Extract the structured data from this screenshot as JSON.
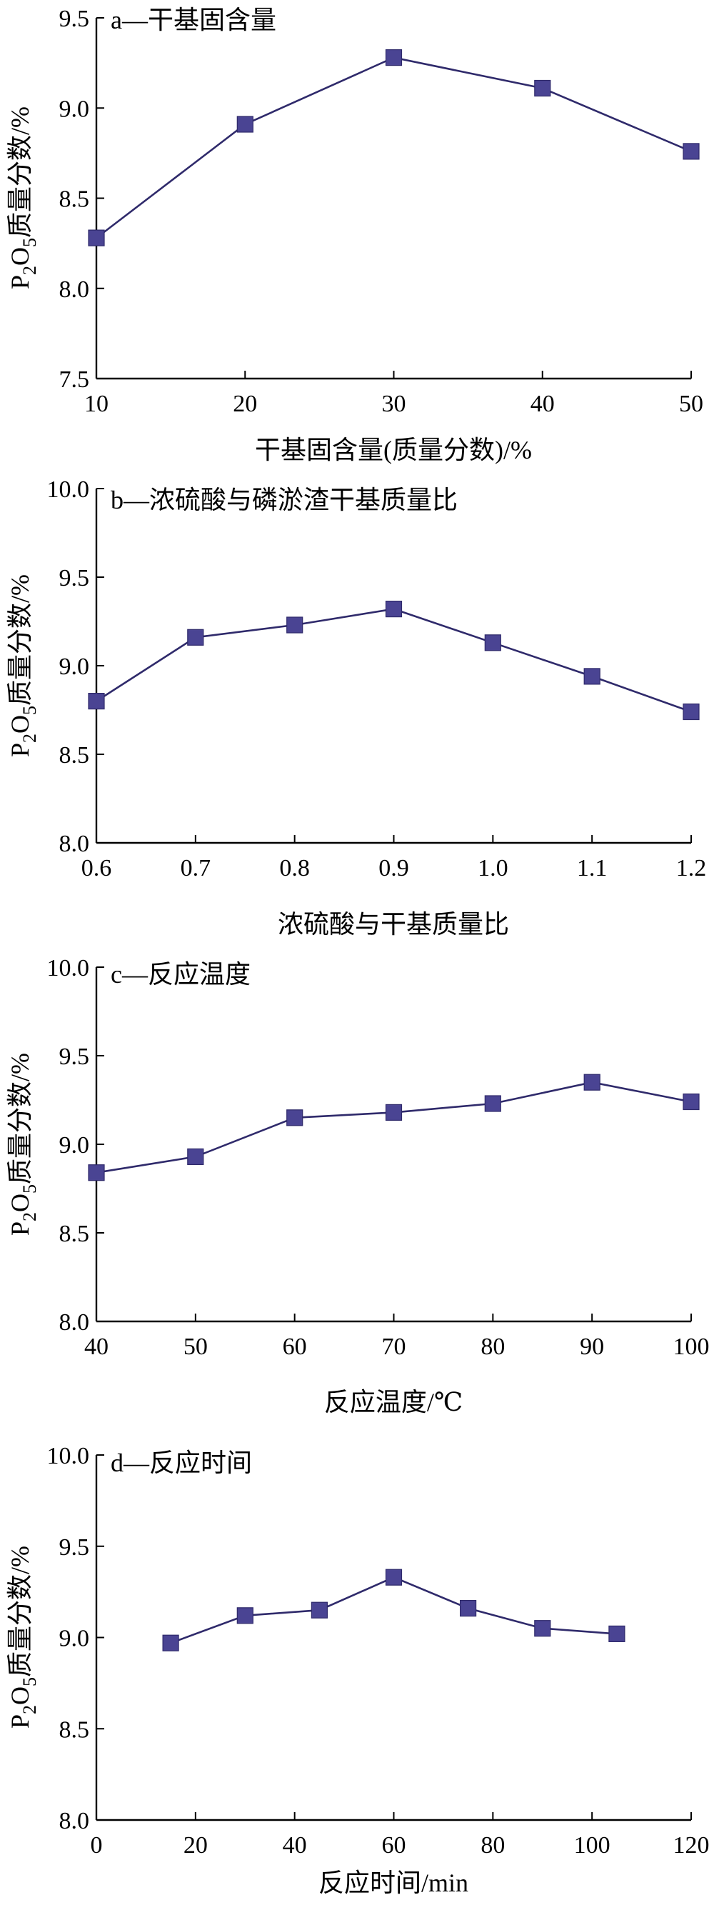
{
  "colors": {
    "line": "#2f2a6b",
    "marker": "#4a4493",
    "axis": "#000000"
  },
  "chart_data": [
    {
      "type": "line",
      "title": "a—干基固含量",
      "xlabel": "干基固含量(质量分数)/%",
      "ylabel": "P2O5质量分数/%",
      "xlim": [
        10,
        50
      ],
      "ylim": [
        7.5,
        9.5
      ],
      "xticks": [
        10,
        20,
        30,
        40,
        50
      ],
      "yticks": [
        7.5,
        8.0,
        8.5,
        9.0,
        9.5
      ],
      "xtick_labels": [
        "10",
        "20",
        "30",
        "40",
        "50"
      ],
      "ytick_labels": [
        "7.5",
        "8.0",
        "8.5",
        "9.0",
        "9.5"
      ],
      "x": [
        10,
        20,
        30,
        40,
        50
      ],
      "y": [
        8.28,
        8.91,
        9.28,
        9.11,
        8.76
      ],
      "marker": "square",
      "grid": false
    },
    {
      "type": "line",
      "title": "b—浓硫酸与磷淤渣干基质量比",
      "xlabel": "浓硫酸与干基质量比",
      "ylabel": "P2O5质量分数/%",
      "xlim": [
        0.6,
        1.2
      ],
      "ylim": [
        8.0,
        10.0
      ],
      "xticks": [
        0.6,
        0.7,
        0.8,
        0.9,
        1.0,
        1.1,
        1.2
      ],
      "yticks": [
        8.0,
        8.5,
        9.0,
        9.5,
        10.0
      ],
      "xtick_labels": [
        "0.6",
        "0.7",
        "0.8",
        "0.9",
        "1.0",
        "1.1",
        "1.2"
      ],
      "ytick_labels": [
        "8.0",
        "8.5",
        "9.0",
        "9.5",
        "10.0"
      ],
      "x": [
        0.6,
        0.7,
        0.8,
        0.9,
        1.0,
        1.1,
        1.2
      ],
      "y": [
        8.8,
        9.16,
        9.23,
        9.32,
        9.13,
        8.94,
        8.74
      ],
      "marker": "square",
      "grid": false
    },
    {
      "type": "line",
      "title": "c—反应温度",
      "xlabel": "反应温度/℃",
      "ylabel": "P2O5质量分数/%",
      "xlim": [
        40,
        100
      ],
      "ylim": [
        8.0,
        10.0
      ],
      "xticks": [
        40,
        50,
        60,
        70,
        80,
        90,
        100
      ],
      "yticks": [
        8.0,
        8.5,
        9.0,
        9.5,
        10.0
      ],
      "xtick_labels": [
        "40",
        "50",
        "60",
        "70",
        "80",
        "90",
        "100"
      ],
      "ytick_labels": [
        "8.0",
        "8.5",
        "9.0",
        "9.5",
        "10.0"
      ],
      "x": [
        40,
        50,
        60,
        70,
        80,
        90,
        100
      ],
      "y": [
        8.84,
        8.93,
        9.15,
        9.18,
        9.23,
        9.35,
        9.24
      ],
      "marker": "square",
      "grid": false
    },
    {
      "type": "line",
      "title": "d—反应时间",
      "xlabel": "反应时间/min",
      "ylabel": "P2O5质量分数/%",
      "xlim": [
        0,
        120
      ],
      "ylim": [
        8.0,
        10.0
      ],
      "xticks": [
        0,
        20,
        40,
        60,
        80,
        100,
        120
      ],
      "yticks": [
        8.0,
        8.5,
        9.0,
        9.5,
        10.0
      ],
      "xtick_labels": [
        "0",
        "20",
        "40",
        "60",
        "80",
        "100",
        "120"
      ],
      "ytick_labels": [
        "8.0",
        "8.5",
        "9.0",
        "9.5",
        "10.0"
      ],
      "x": [
        15,
        30,
        45,
        60,
        75,
        90,
        105
      ],
      "y": [
        8.97,
        9.12,
        9.15,
        9.33,
        9.16,
        9.05,
        9.02
      ],
      "marker": "square",
      "grid": false
    }
  ]
}
